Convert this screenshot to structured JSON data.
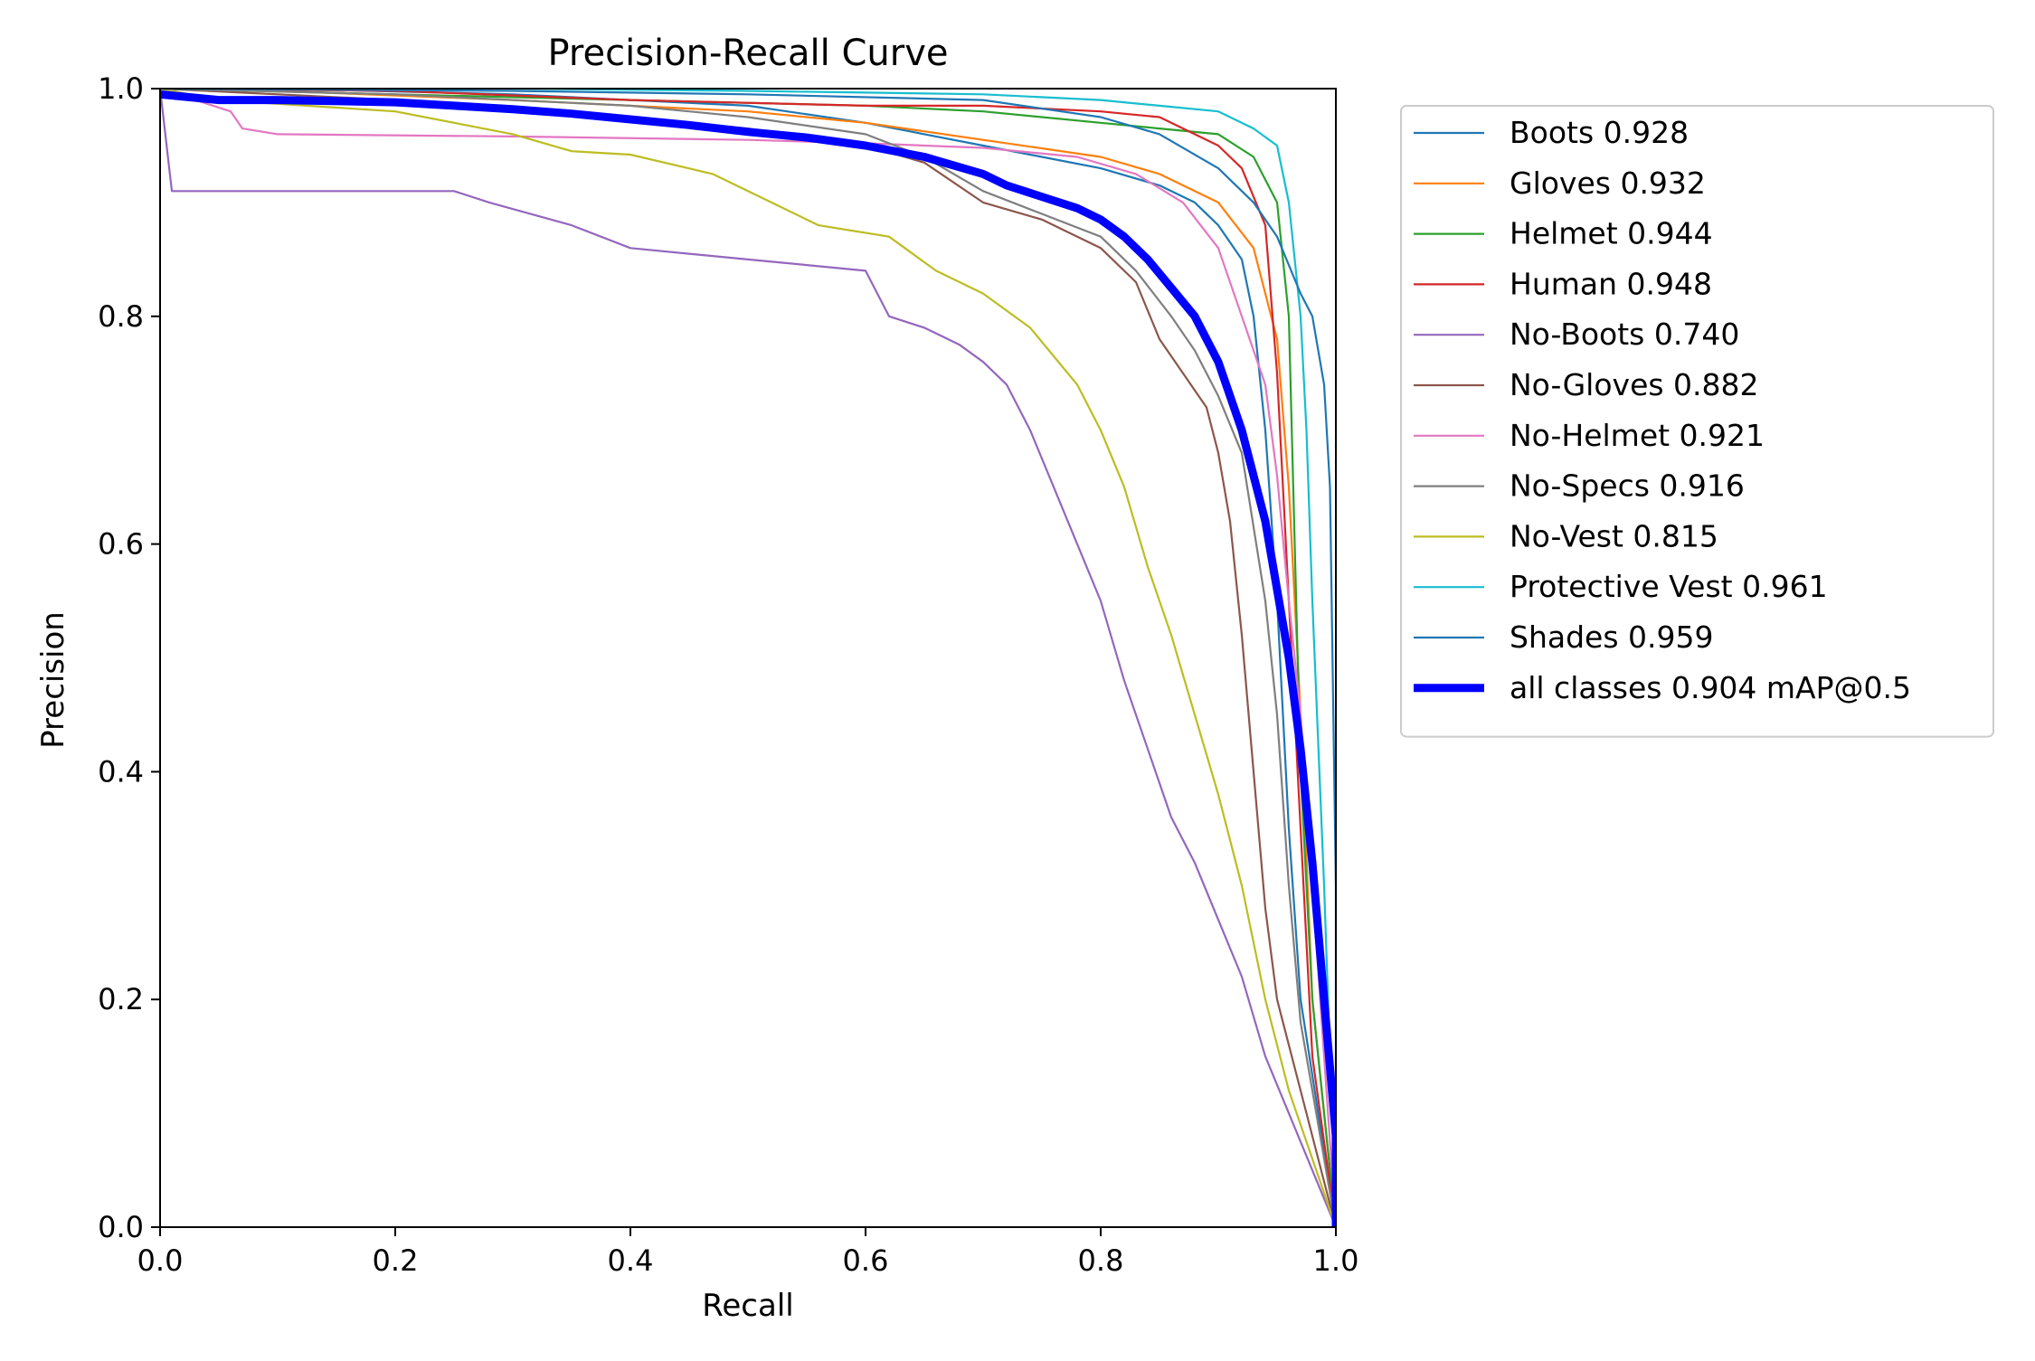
{
  "chart_data": {
    "type": "line",
    "title": "Precision-Recall Curve",
    "xlabel": "Recall",
    "ylabel": "Precision",
    "xlim": [
      0.0,
      1.0
    ],
    "ylim": [
      0.0,
      1.0
    ],
    "x_ticks": [
      "0.0",
      "0.2",
      "0.4",
      "0.6",
      "0.8",
      "1.0"
    ],
    "y_ticks": [
      "0.0",
      "0.2",
      "0.4",
      "0.6",
      "0.8",
      "1.0"
    ],
    "grid": false,
    "legend_position": "outside-right-top",
    "series": [
      {
        "name": "Boots 0.928",
        "color": "#1f77b4",
        "emphasis": false,
        "points": [
          [
            0,
            1.0
          ],
          [
            0.1,
            1.0
          ],
          [
            0.3,
            0.995
          ],
          [
            0.5,
            0.985
          ],
          [
            0.6,
            0.97
          ],
          [
            0.65,
            0.96
          ],
          [
            0.7,
            0.95
          ],
          [
            0.75,
            0.94
          ],
          [
            0.8,
            0.93
          ],
          [
            0.85,
            0.915
          ],
          [
            0.88,
            0.9
          ],
          [
            0.9,
            0.88
          ],
          [
            0.92,
            0.85
          ],
          [
            0.93,
            0.8
          ],
          [
            0.94,
            0.7
          ],
          [
            0.95,
            0.55
          ],
          [
            0.96,
            0.35
          ],
          [
            0.97,
            0.2
          ],
          [
            1.0,
            0.0
          ]
        ]
      },
      {
        "name": "Gloves 0.932",
        "color": "#ff7f0e",
        "emphasis": false,
        "points": [
          [
            0,
            1.0
          ],
          [
            0.1,
            0.998
          ],
          [
            0.3,
            0.99
          ],
          [
            0.5,
            0.98
          ],
          [
            0.6,
            0.97
          ],
          [
            0.7,
            0.955
          ],
          [
            0.8,
            0.94
          ],
          [
            0.85,
            0.925
          ],
          [
            0.9,
            0.9
          ],
          [
            0.93,
            0.86
          ],
          [
            0.95,
            0.78
          ],
          [
            0.96,
            0.65
          ],
          [
            0.97,
            0.45
          ],
          [
            0.98,
            0.2
          ],
          [
            1.0,
            0.0
          ]
        ]
      },
      {
        "name": "Helmet 0.944",
        "color": "#2ca02c",
        "emphasis": false,
        "points": [
          [
            0,
            1.0
          ],
          [
            0.2,
            0.995
          ],
          [
            0.4,
            0.99
          ],
          [
            0.6,
            0.985
          ],
          [
            0.7,
            0.98
          ],
          [
            0.8,
            0.97
          ],
          [
            0.85,
            0.965
          ],
          [
            0.9,
            0.96
          ],
          [
            0.93,
            0.94
          ],
          [
            0.95,
            0.9
          ],
          [
            0.96,
            0.8
          ],
          [
            0.965,
            0.6
          ],
          [
            0.97,
            0.4
          ],
          [
            0.98,
            0.2
          ],
          [
            1.0,
            0.0
          ]
        ]
      },
      {
        "name": "Human 0.948",
        "color": "#d62728",
        "emphasis": false,
        "points": [
          [
            0,
            1.0
          ],
          [
            0.2,
            0.998
          ],
          [
            0.4,
            0.99
          ],
          [
            0.6,
            0.985
          ],
          [
            0.7,
            0.985
          ],
          [
            0.8,
            0.98
          ],
          [
            0.85,
            0.975
          ],
          [
            0.88,
            0.96
          ],
          [
            0.9,
            0.95
          ],
          [
            0.92,
            0.93
          ],
          [
            0.94,
            0.88
          ],
          [
            0.95,
            0.75
          ],
          [
            0.96,
            0.55
          ],
          [
            0.97,
            0.35
          ],
          [
            0.98,
            0.15
          ],
          [
            1.0,
            0.0
          ]
        ]
      },
      {
        "name": "No-Boots 0.740",
        "color": "#9467bd",
        "emphasis": false,
        "points": [
          [
            0,
            1.0
          ],
          [
            0.01,
            0.91
          ],
          [
            0.1,
            0.91
          ],
          [
            0.2,
            0.91
          ],
          [
            0.25,
            0.91
          ],
          [
            0.28,
            0.9
          ],
          [
            0.35,
            0.88
          ],
          [
            0.4,
            0.86
          ],
          [
            0.45,
            0.855
          ],
          [
            0.5,
            0.85
          ],
          [
            0.55,
            0.845
          ],
          [
            0.6,
            0.84
          ],
          [
            0.62,
            0.8
          ],
          [
            0.65,
            0.79
          ],
          [
            0.68,
            0.775
          ],
          [
            0.7,
            0.76
          ],
          [
            0.72,
            0.74
          ],
          [
            0.74,
            0.7
          ],
          [
            0.76,
            0.65
          ],
          [
            0.78,
            0.6
          ],
          [
            0.8,
            0.55
          ],
          [
            0.82,
            0.48
          ],
          [
            0.84,
            0.42
          ],
          [
            0.86,
            0.36
          ],
          [
            0.88,
            0.32
          ],
          [
            0.9,
            0.27
          ],
          [
            0.92,
            0.22
          ],
          [
            0.94,
            0.15
          ],
          [
            0.96,
            0.1
          ],
          [
            1.0,
            0.0
          ]
        ]
      },
      {
        "name": "No-Gloves 0.882",
        "color": "#8c564b",
        "emphasis": false,
        "points": [
          [
            0,
            1.0
          ],
          [
            0.2,
            0.99
          ],
          [
            0.4,
            0.975
          ],
          [
            0.5,
            0.965
          ],
          [
            0.6,
            0.95
          ],
          [
            0.65,
            0.935
          ],
          [
            0.7,
            0.9
          ],
          [
            0.75,
            0.885
          ],
          [
            0.8,
            0.86
          ],
          [
            0.83,
            0.83
          ],
          [
            0.85,
            0.78
          ],
          [
            0.87,
            0.75
          ],
          [
            0.89,
            0.72
          ],
          [
            0.9,
            0.68
          ],
          [
            0.91,
            0.62
          ],
          [
            0.92,
            0.52
          ],
          [
            0.93,
            0.4
          ],
          [
            0.94,
            0.28
          ],
          [
            0.95,
            0.2
          ],
          [
            0.97,
            0.12
          ],
          [
            1.0,
            0.0
          ]
        ]
      },
      {
        "name": "No-Helmet 0.921",
        "color": "#e377c2",
        "emphasis": false,
        "points": [
          [
            0,
            1.0
          ],
          [
            0.06,
            0.98
          ],
          [
            0.07,
            0.965
          ],
          [
            0.1,
            0.96
          ],
          [
            0.3,
            0.958
          ],
          [
            0.5,
            0.955
          ],
          [
            0.6,
            0.952
          ],
          [
            0.7,
            0.948
          ],
          [
            0.78,
            0.94
          ],
          [
            0.83,
            0.925
          ],
          [
            0.87,
            0.9
          ],
          [
            0.9,
            0.86
          ],
          [
            0.92,
            0.8
          ],
          [
            0.94,
            0.74
          ],
          [
            0.95,
            0.66
          ],
          [
            0.96,
            0.55
          ],
          [
            0.97,
            0.45
          ],
          [
            0.98,
            0.3
          ],
          [
            0.99,
            0.15
          ],
          [
            1.0,
            0.0
          ]
        ]
      },
      {
        "name": "No-Specs 0.916",
        "color": "#7f7f7f",
        "emphasis": false,
        "points": [
          [
            0,
            1.0
          ],
          [
            0.2,
            0.995
          ],
          [
            0.4,
            0.985
          ],
          [
            0.5,
            0.975
          ],
          [
            0.6,
            0.96
          ],
          [
            0.65,
            0.94
          ],
          [
            0.7,
            0.91
          ],
          [
            0.75,
            0.89
          ],
          [
            0.8,
            0.87
          ],
          [
            0.83,
            0.84
          ],
          [
            0.86,
            0.8
          ],
          [
            0.88,
            0.77
          ],
          [
            0.9,
            0.73
          ],
          [
            0.92,
            0.68
          ],
          [
            0.94,
            0.55
          ],
          [
            0.95,
            0.45
          ],
          [
            0.96,
            0.3
          ],
          [
            0.97,
            0.18
          ],
          [
            1.0,
            0.0
          ]
        ]
      },
      {
        "name": "No-Vest 0.815",
        "color": "#bcbd22",
        "emphasis": false,
        "points": [
          [
            0,
            1.0
          ],
          [
            0.05,
            0.99
          ],
          [
            0.2,
            0.98
          ],
          [
            0.3,
            0.96
          ],
          [
            0.35,
            0.945
          ],
          [
            0.4,
            0.942
          ],
          [
            0.47,
            0.925
          ],
          [
            0.52,
            0.9
          ],
          [
            0.56,
            0.88
          ],
          [
            0.62,
            0.87
          ],
          [
            0.66,
            0.84
          ],
          [
            0.7,
            0.82
          ],
          [
            0.74,
            0.79
          ],
          [
            0.78,
            0.74
          ],
          [
            0.8,
            0.7
          ],
          [
            0.82,
            0.65
          ],
          [
            0.84,
            0.58
          ],
          [
            0.86,
            0.52
          ],
          [
            0.88,
            0.45
          ],
          [
            0.9,
            0.38
          ],
          [
            0.92,
            0.3
          ],
          [
            0.94,
            0.2
          ],
          [
            0.96,
            0.12
          ],
          [
            1.0,
            0.0
          ]
        ]
      },
      {
        "name": "Protective Vest 0.961",
        "color": "#17becf",
        "emphasis": false,
        "points": [
          [
            0,
            1.0
          ],
          [
            0.3,
            1.0
          ],
          [
            0.5,
            0.998
          ],
          [
            0.7,
            0.995
          ],
          [
            0.8,
            0.99
          ],
          [
            0.85,
            0.985
          ],
          [
            0.9,
            0.98
          ],
          [
            0.93,
            0.965
          ],
          [
            0.95,
            0.95
          ],
          [
            0.96,
            0.9
          ],
          [
            0.97,
            0.8
          ],
          [
            0.975,
            0.7
          ],
          [
            0.98,
            0.55
          ],
          [
            0.99,
            0.3
          ],
          [
            1.0,
            0.0
          ]
        ]
      },
      {
        "name": "Shades 0.959",
        "color": "#1f77b4",
        "emphasis": false,
        "points": [
          [
            0,
            1.0
          ],
          [
            0.3,
            0.998
          ],
          [
            0.5,
            0.995
          ],
          [
            0.7,
            0.99
          ],
          [
            0.8,
            0.975
          ],
          [
            0.85,
            0.96
          ],
          [
            0.9,
            0.93
          ],
          [
            0.93,
            0.9
          ],
          [
            0.95,
            0.87
          ],
          [
            0.97,
            0.82
          ],
          [
            0.98,
            0.8
          ],
          [
            0.99,
            0.74
          ],
          [
            0.995,
            0.65
          ],
          [
            1.0,
            0.3
          ],
          [
            1.0,
            0.0
          ]
        ]
      },
      {
        "name": "all classes 0.904 mAP@0.5",
        "color": "#0000ff",
        "emphasis": true,
        "points": [
          [
            0,
            0.995
          ],
          [
            0.05,
            0.99
          ],
          [
            0.1,
            0.99
          ],
          [
            0.2,
            0.988
          ],
          [
            0.25,
            0.985
          ],
          [
            0.3,
            0.982
          ],
          [
            0.35,
            0.978
          ],
          [
            0.4,
            0.973
          ],
          [
            0.45,
            0.968
          ],
          [
            0.5,
            0.962
          ],
          [
            0.55,
            0.957
          ],
          [
            0.6,
            0.95
          ],
          [
            0.65,
            0.94
          ],
          [
            0.7,
            0.925
          ],
          [
            0.72,
            0.915
          ],
          [
            0.75,
            0.905
          ],
          [
            0.78,
            0.895
          ],
          [
            0.8,
            0.885
          ],
          [
            0.82,
            0.87
          ],
          [
            0.84,
            0.85
          ],
          [
            0.86,
            0.825
          ],
          [
            0.88,
            0.8
          ],
          [
            0.9,
            0.76
          ],
          [
            0.92,
            0.7
          ],
          [
            0.94,
            0.62
          ],
          [
            0.95,
            0.56
          ],
          [
            0.96,
            0.5
          ],
          [
            0.97,
            0.42
          ],
          [
            0.98,
            0.32
          ],
          [
            0.99,
            0.2
          ],
          [
            1.0,
            0.08
          ],
          [
            1.0,
            0.0
          ]
        ]
      }
    ]
  }
}
